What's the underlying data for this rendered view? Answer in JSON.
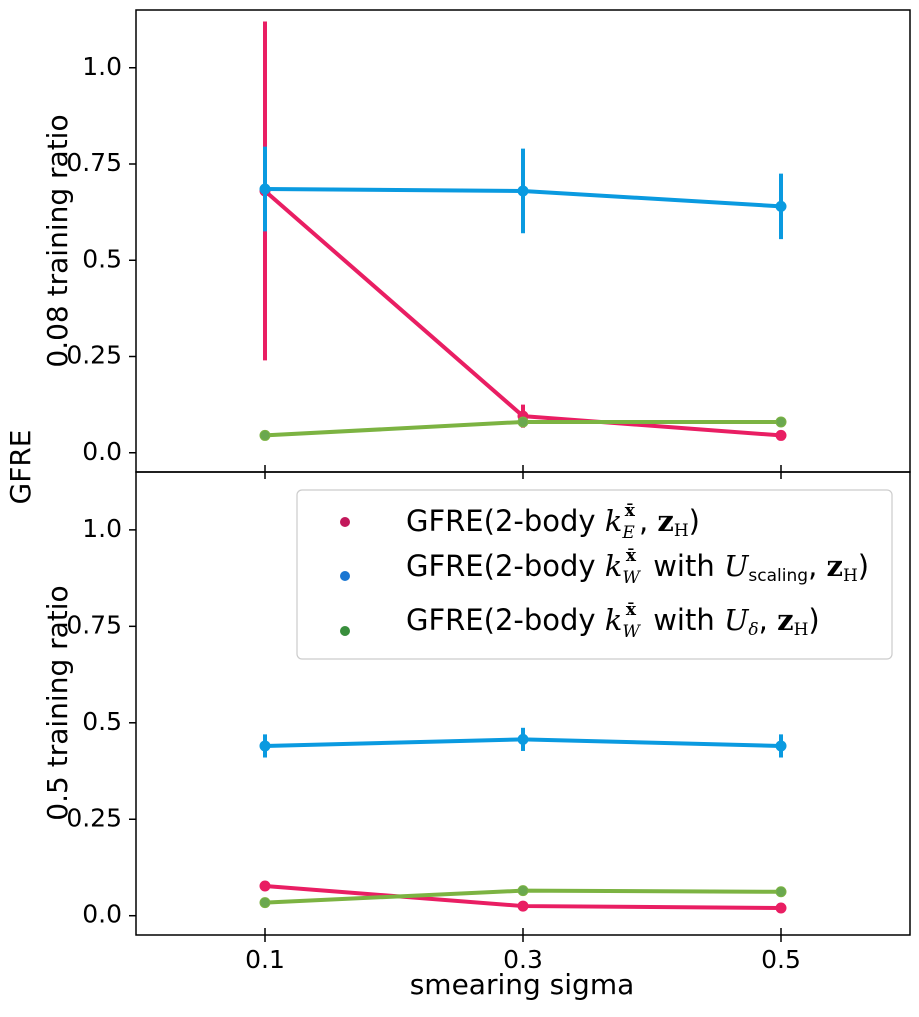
{
  "figure": {
    "shared_ylabel": "GFRE",
    "xlabel": "smearing sigma"
  },
  "legend": {
    "entries": [
      {
        "label": "GFRE(2-body k_E^x̄, z_H)",
        "color": "#c2185b"
      },
      {
        "label": "GFRE(2-body k_W^x̄ with U_scaling, z_H)",
        "color": "#1976d2"
      },
      {
        "label": "GFRE(2-body k_W^x̄ with U_δ, z_H)",
        "color": "#388e3c"
      }
    ]
  },
  "chart_data": [
    {
      "type": "line",
      "panel": "top",
      "ylabel": "0.08 training ratio",
      "x": [
        0.1,
        0.3,
        0.5
      ],
      "x_ticks": [
        "0.1",
        "0.3",
        "0.5"
      ],
      "xlim": [
        0.0,
        0.6
      ],
      "ylim": [
        -0.05,
        1.15
      ],
      "y_ticks": [
        "0.0",
        "0.25",
        "0.5",
        "0.75",
        "1.0"
      ],
      "legend": "none",
      "series": [
        {
          "name": "GFRE(2-body k_E^x̄, z_H)",
          "line_color": "#e91e63",
          "marker_color": "#e91e63",
          "values": [
            0.68,
            0.095,
            0.045
          ],
          "errors": [
            0.44,
            0.03,
            0.01
          ]
        },
        {
          "name": "GFRE(2-body k_W^x̄ with U_scaling, z_H)",
          "line_color": "#0a9ae0",
          "marker_color": "#0a9ae0",
          "values": [
            0.685,
            0.68,
            0.64
          ],
          "errors": [
            0.11,
            0.11,
            0.085
          ]
        },
        {
          "name": "GFRE(2-body k_W^x̄ with U_δ, z_H)",
          "line_color": "#7cb342",
          "marker_color": "#6aa84f",
          "values": [
            0.045,
            0.08,
            0.08
          ],
          "errors": [
            0.005,
            0.01,
            0.012
          ]
        }
      ]
    },
    {
      "type": "line",
      "panel": "bottom",
      "ylabel": "0.5 training ratio",
      "x": [
        0.1,
        0.3,
        0.5
      ],
      "x_ticks": [
        "0.1",
        "0.3",
        "0.5"
      ],
      "xlim": [
        0.0,
        0.6
      ],
      "ylim": [
        -0.05,
        1.15
      ],
      "y_ticks": [
        "0.0",
        "0.25",
        "0.5",
        "0.75",
        "1.0"
      ],
      "legend": "upper-right",
      "series": [
        {
          "name": "GFRE(2-body k_E^x̄, z_H)",
          "line_color": "#e91e63",
          "marker_color": "#e91e63",
          "values": [
            0.077,
            0.025,
            0.02
          ],
          "errors": [
            0.003,
            0.002,
            0.002
          ]
        },
        {
          "name": "GFRE(2-body k_W^x̄ with U_scaling, z_H)",
          "line_color": "#0a9ae0",
          "marker_color": "#0a9ae0",
          "values": [
            0.44,
            0.457,
            0.44
          ],
          "errors": [
            0.03,
            0.03,
            0.03
          ]
        },
        {
          "name": "GFRE(2-body k_W^x̄ with U_δ, z_H)",
          "line_color": "#7cb342",
          "marker_color": "#6aa84f",
          "values": [
            0.034,
            0.065,
            0.062
          ],
          "errors": [
            0.003,
            0.004,
            0.004
          ]
        }
      ]
    }
  ]
}
